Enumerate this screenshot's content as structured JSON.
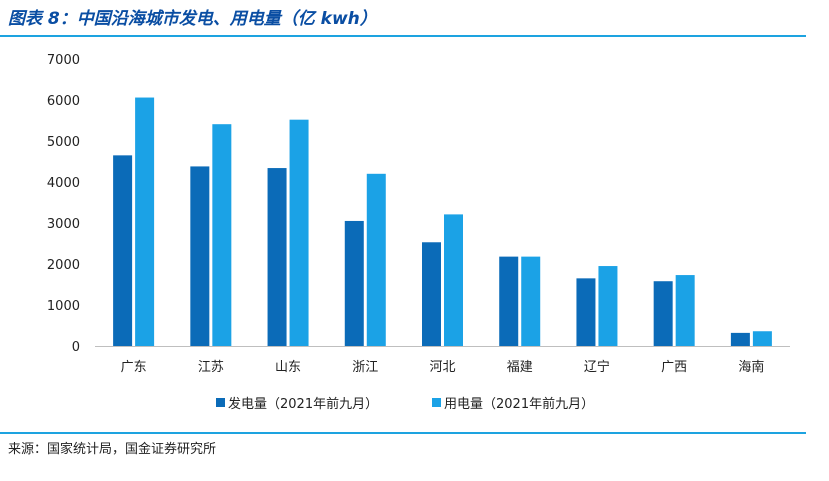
{
  "title": "图表 8：中国沿海城市发电、用电量（亿 kwh）",
  "source": "来源：国家统计局，国金证券研究所",
  "colors": {
    "series_0": "#0b6bb8",
    "series_1": "#1ba2e6",
    "rule": "#1da3e0",
    "title": "#0a4ea3"
  },
  "chart_data": {
    "type": "bar",
    "categories": [
      "广东",
      "江苏",
      "山东",
      "浙江",
      "河北",
      "福建",
      "辽宁",
      "广西",
      "海南"
    ],
    "series": [
      {
        "name": "发电量（2021年前九月）",
        "values": [
          4650,
          4380,
          4340,
          3050,
          2530,
          2180,
          1650,
          1580,
          320
        ]
      },
      {
        "name": "用电量（2021年前九月）",
        "values": [
          6060,
          5410,
          5520,
          4200,
          3210,
          2180,
          1950,
          1730,
          360
        ]
      }
    ],
    "yticks": [
      "0",
      "1000",
      "2000",
      "3000",
      "4000",
      "5000",
      "6000",
      "7000"
    ],
    "ylim": [
      0,
      7000
    ],
    "grid": false,
    "legend_position": "bottom"
  }
}
